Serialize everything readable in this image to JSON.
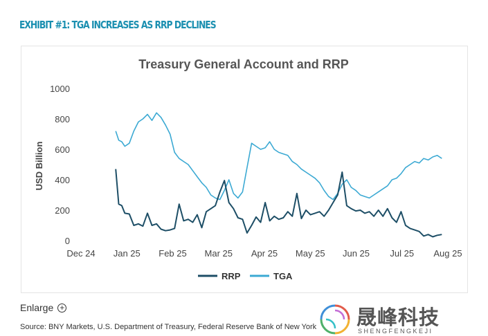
{
  "exhibit_title": "EXHIBIT #1: TGA INCREASES AS RRP DECLINES",
  "enlarge_label": "Enlarge",
  "source": "Source: BNY Markets, U.S. Department of Treasury, Federal Reserve Bank of New York",
  "watermark": {
    "name_cn": "晟峰科技",
    "name_en": "SHENGFENGKEJI"
  },
  "colors": {
    "rrp": "#1d4e66",
    "tga": "#3ba9d3",
    "exhibit": "#1a8fb0"
  },
  "chart_data": {
    "type": "line",
    "title": "Treasury General Account and RRP",
    "ylabel": "USD Billion",
    "xlabel": "",
    "ylim": [
      0,
      1000
    ],
    "yticks": [
      "0",
      "200",
      "400",
      "600",
      "800",
      "1000"
    ],
    "xtick_labels": [
      "Dec 24",
      "Jan 25",
      "Feb 25",
      "Mar 25",
      "Apr 25",
      "May 25",
      "Jun 25",
      "Jul 25",
      "Aug 25"
    ],
    "legend": "bottom",
    "grid": false,
    "series": [
      {
        "name": "RRP",
        "x": [
          "2024-12-24",
          "2024-12-26",
          "2024-12-28",
          "2024-12-30",
          "2025-01-02",
          "2025-01-05",
          "2025-01-08",
          "2025-01-11",
          "2025-01-14",
          "2025-01-17",
          "2025-01-20",
          "2025-01-23",
          "2025-01-26",
          "2025-01-29",
          "2025-02-01",
          "2025-02-04",
          "2025-02-07",
          "2025-02-10",
          "2025-02-13",
          "2025-02-16",
          "2025-02-19",
          "2025-02-22",
          "2025-02-25",
          "2025-02-28",
          "2025-03-03",
          "2025-03-06",
          "2025-03-09",
          "2025-03-12",
          "2025-03-15",
          "2025-03-18",
          "2025-03-21",
          "2025-03-24",
          "2025-03-27",
          "2025-03-30",
          "2025-04-02",
          "2025-04-05",
          "2025-04-08",
          "2025-04-11",
          "2025-04-14",
          "2025-04-17",
          "2025-04-20",
          "2025-04-23",
          "2025-04-26",
          "2025-04-29",
          "2025-05-02",
          "2025-05-05",
          "2025-05-08",
          "2025-05-11",
          "2025-05-14",
          "2025-05-17",
          "2025-05-20",
          "2025-05-23",
          "2025-05-26",
          "2025-05-29",
          "2025-06-01",
          "2025-06-04",
          "2025-06-07",
          "2025-06-10",
          "2025-06-13",
          "2025-06-16",
          "2025-06-19",
          "2025-06-22",
          "2025-06-25",
          "2025-06-28",
          "2025-07-01",
          "2025-07-04",
          "2025-07-07",
          "2025-07-10",
          "2025-07-13",
          "2025-07-16",
          "2025-07-19",
          "2025-07-22",
          "2025-07-25",
          "2025-07-28"
        ],
        "values": [
          470,
          240,
          230,
          180,
          175,
          100,
          110,
          95,
          180,
          100,
          110,
          75,
          65,
          70,
          80,
          240,
          130,
          140,
          120,
          170,
          85,
          190,
          210,
          230,
          320,
          395,
          250,
          210,
          150,
          140,
          50,
          100,
          155,
          120,
          250,
          130,
          160,
          140,
          150,
          190,
          160,
          310,
          145,
          200,
          170,
          180,
          190,
          160,
          200,
          250,
          300,
          450,
          230,
          210,
          195,
          200,
          180,
          190,
          160,
          200,
          160,
          210,
          150,
          120,
          190,
          100,
          80,
          70,
          60,
          30,
          40,
          25,
          35,
          40
        ]
      },
      {
        "name": "TGA",
        "x": [
          "2024-12-24",
          "2024-12-26",
          "2024-12-28",
          "2024-12-30",
          "2025-01-02",
          "2025-01-05",
          "2025-01-08",
          "2025-01-11",
          "2025-01-14",
          "2025-01-17",
          "2025-01-20",
          "2025-01-23",
          "2025-01-26",
          "2025-01-29",
          "2025-02-01",
          "2025-02-04",
          "2025-02-07",
          "2025-02-10",
          "2025-02-13",
          "2025-02-16",
          "2025-02-19",
          "2025-02-22",
          "2025-02-25",
          "2025-02-28",
          "2025-03-03",
          "2025-03-06",
          "2025-03-09",
          "2025-03-12",
          "2025-03-15",
          "2025-03-18",
          "2025-03-21",
          "2025-03-24",
          "2025-03-27",
          "2025-03-30",
          "2025-04-02",
          "2025-04-05",
          "2025-04-08",
          "2025-04-11",
          "2025-04-14",
          "2025-04-17",
          "2025-04-20",
          "2025-04-23",
          "2025-04-26",
          "2025-04-29",
          "2025-05-02",
          "2025-05-05",
          "2025-05-08",
          "2025-05-11",
          "2025-05-14",
          "2025-05-17",
          "2025-05-20",
          "2025-05-23",
          "2025-05-26",
          "2025-05-29",
          "2025-06-01",
          "2025-06-04",
          "2025-06-07",
          "2025-06-10",
          "2025-06-13",
          "2025-06-16",
          "2025-06-19",
          "2025-06-22",
          "2025-06-25",
          "2025-06-28",
          "2025-07-01",
          "2025-07-04",
          "2025-07-07",
          "2025-07-10",
          "2025-07-13",
          "2025-07-16",
          "2025-07-19",
          "2025-07-22",
          "2025-07-25",
          "2025-07-28"
        ],
        "values": [
          720,
          660,
          650,
          620,
          640,
          720,
          780,
          800,
          830,
          790,
          840,
          810,
          760,
          700,
          580,
          540,
          520,
          500,
          460,
          420,
          380,
          350,
          300,
          280,
          270,
          330,
          400,
          310,
          280,
          320,
          480,
          640,
          620,
          600,
          610,
          650,
          600,
          580,
          570,
          560,
          520,
          500,
          470,
          450,
          430,
          410,
          380,
          330,
          290,
          270,
          310,
          370,
          400,
          350,
          330,
          300,
          290,
          280,
          300,
          320,
          340,
          360,
          400,
          410,
          440,
          480,
          500,
          520,
          510,
          540,
          530,
          550,
          560,
          540
        ]
      }
    ]
  }
}
